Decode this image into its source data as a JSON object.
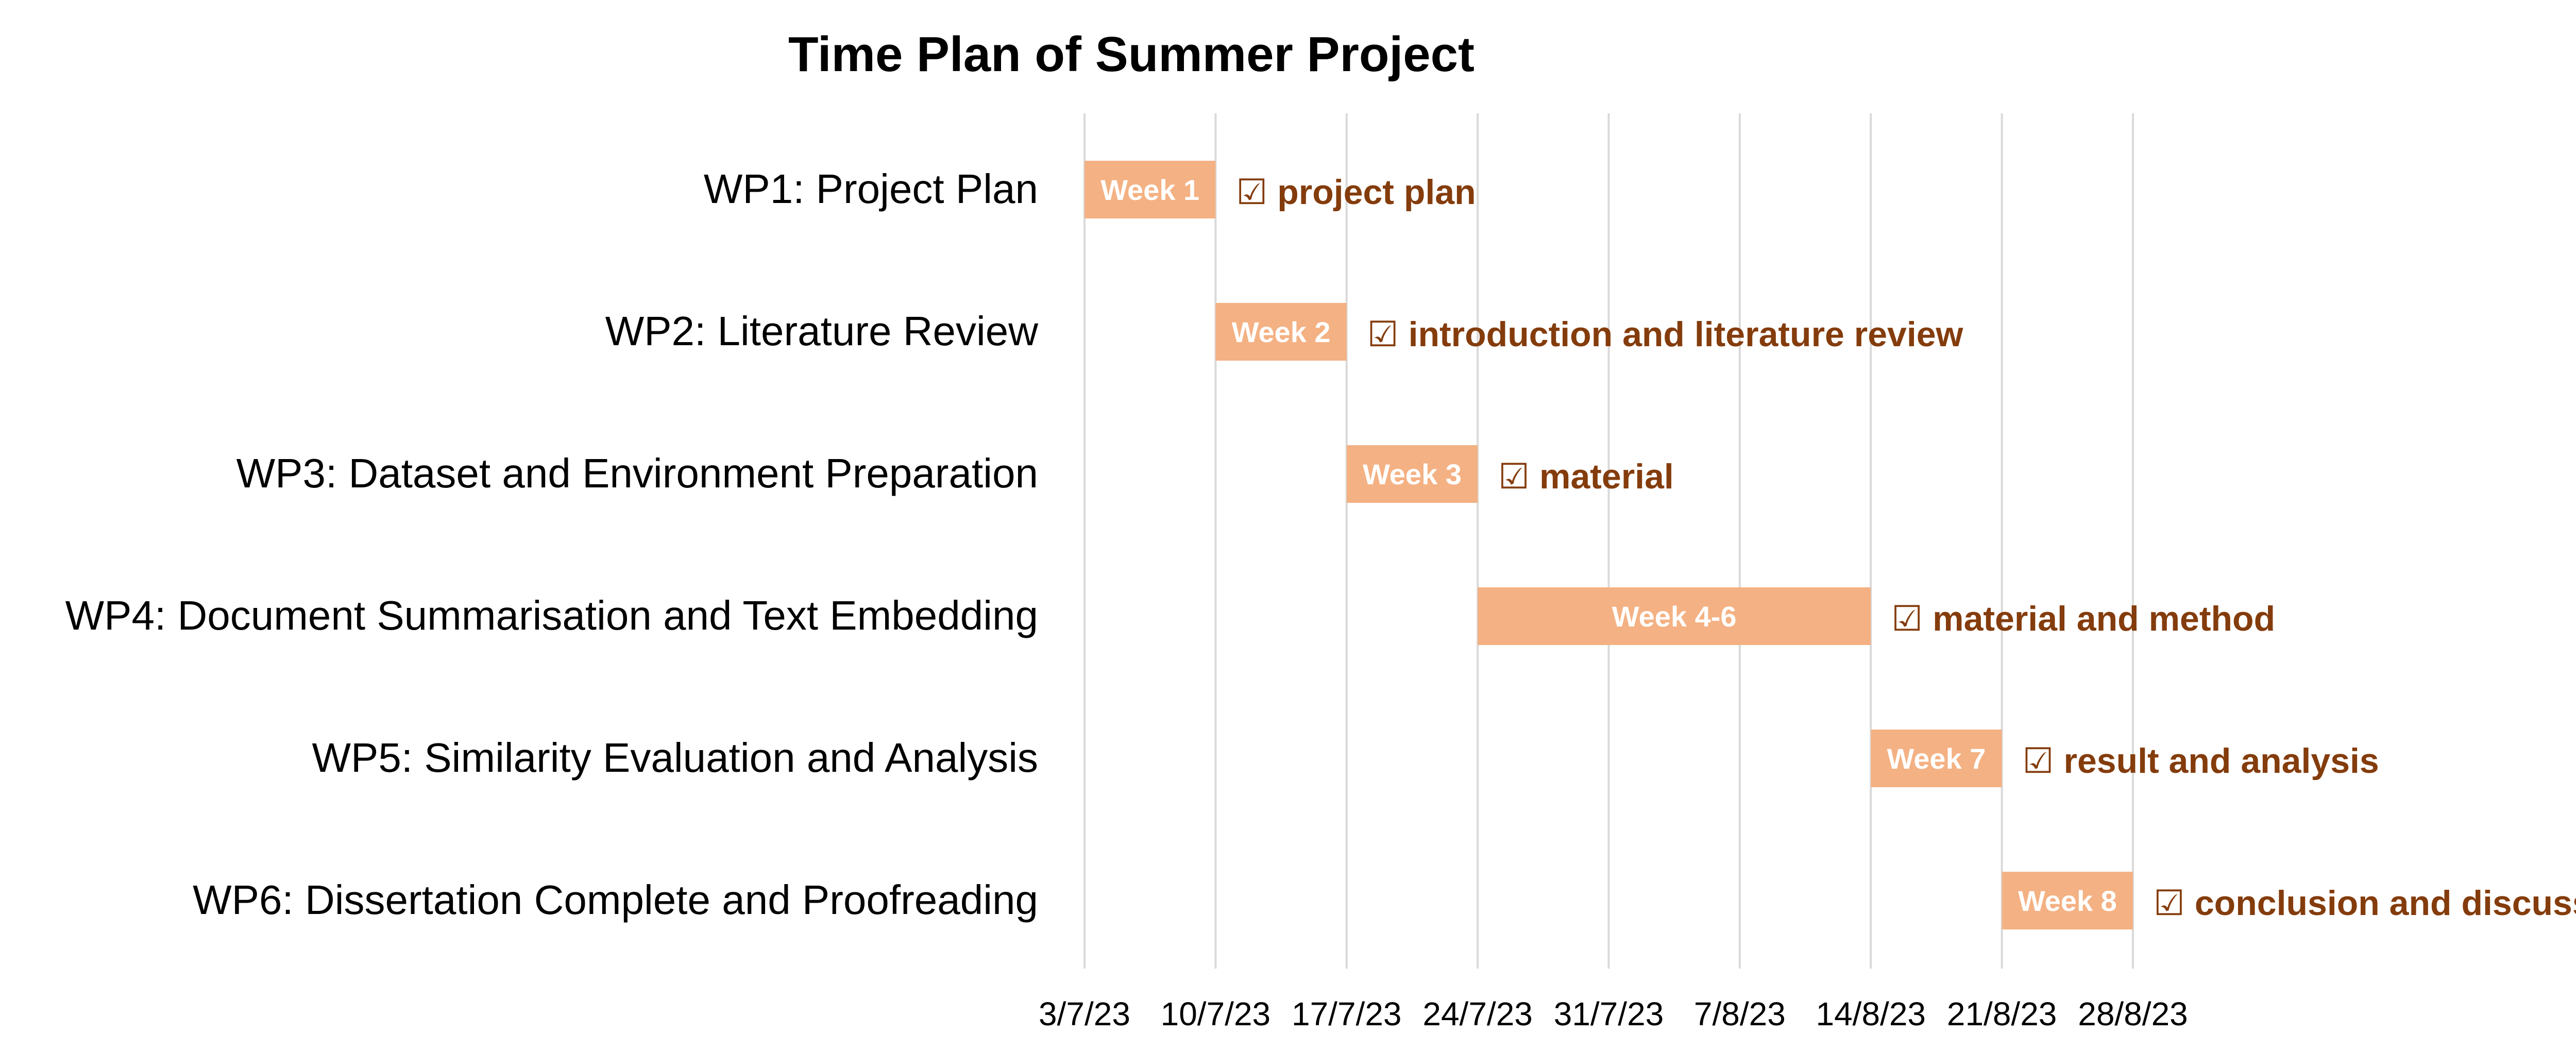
{
  "chart_data": {
    "type": "gantt",
    "title": "Time Plan of Summer Project",
    "x_ticks": [
      "3/7/23",
      "10/7/23",
      "17/7/23",
      "24/7/23",
      "31/7/23",
      "7/8/23",
      "14/8/23",
      "21/8/23",
      "28/8/23"
    ],
    "xlim": [
      "3/7/23",
      "28/8/23"
    ],
    "grid": true,
    "tasks": [
      {
        "label": "WP1: Project Plan",
        "start": "3/7/23",
        "end": "10/7/23",
        "bar_label": "Week 1",
        "note": "☑ project plan"
      },
      {
        "label": "WP2: Literature Review",
        "start": "10/7/23",
        "end": "17/7/23",
        "bar_label": "Week 2",
        "note": "☑ introduction and literature review"
      },
      {
        "label": "WP3: Dataset and Environment Preparation",
        "start": "17/7/23",
        "end": "24/7/23",
        "bar_label": "Week 3",
        "note": "☑ material"
      },
      {
        "label": "WP4: Document Summarisation and Text Embedding",
        "start": "24/7/23",
        "end": "14/8/23",
        "bar_label": "Week 4-6",
        "note": "☑ material and method"
      },
      {
        "label": "WP5: Similarity Evaluation and Analysis",
        "start": "14/8/23",
        "end": "21/8/23",
        "bar_label": "Week 7",
        "note": "☑ result and analysis"
      },
      {
        "label": "WP6: Dissertation Complete and Proofreading",
        "start": "21/8/23",
        "end": "28/8/23",
        "bar_label": "Week 8",
        "note": "☑ conclusion and discussion"
      }
    ],
    "colors": {
      "bar": "#f4b183",
      "note": "#843c0c",
      "grid": "#d9d9d9"
    }
  }
}
